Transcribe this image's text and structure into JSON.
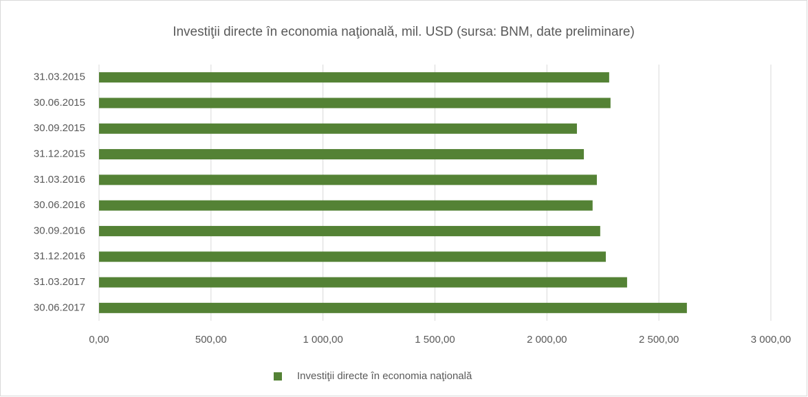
{
  "chart_data": {
    "type": "bar",
    "orientation": "horizontal",
    "title": "Investiţii directe în economia naţională, mil. USD (sursa: BNM, date preliminare)",
    "categories": [
      "31.03.2015",
      "30.06.2015",
      "30.09.2015",
      "31.12.2015",
      "31.03.2016",
      "30.06.2016",
      "30.09.2016",
      "31.12.2016",
      "31.03.2017",
      "30.06.2017"
    ],
    "series": [
      {
        "name": "Investiţii directe în economia naţională",
        "color": "#548235",
        "values": [
          2278,
          2284,
          2134,
          2165,
          2223,
          2204,
          2238,
          2263,
          2358,
          2625
        ]
      }
    ],
    "xlim": [
      0,
      3000
    ],
    "xticks": [
      {
        "value": 0,
        "label": "0,00"
      },
      {
        "value": 500,
        "label": "500,00"
      },
      {
        "value": 1000,
        "label": "1 000,00"
      },
      {
        "value": 1500,
        "label": "1 500,00"
      },
      {
        "value": 2000,
        "label": "2 000,00"
      },
      {
        "value": 2500,
        "label": "2 500,00"
      },
      {
        "value": 3000,
        "label": "3 000,00"
      }
    ],
    "grid": true,
    "legend": "bottom"
  }
}
